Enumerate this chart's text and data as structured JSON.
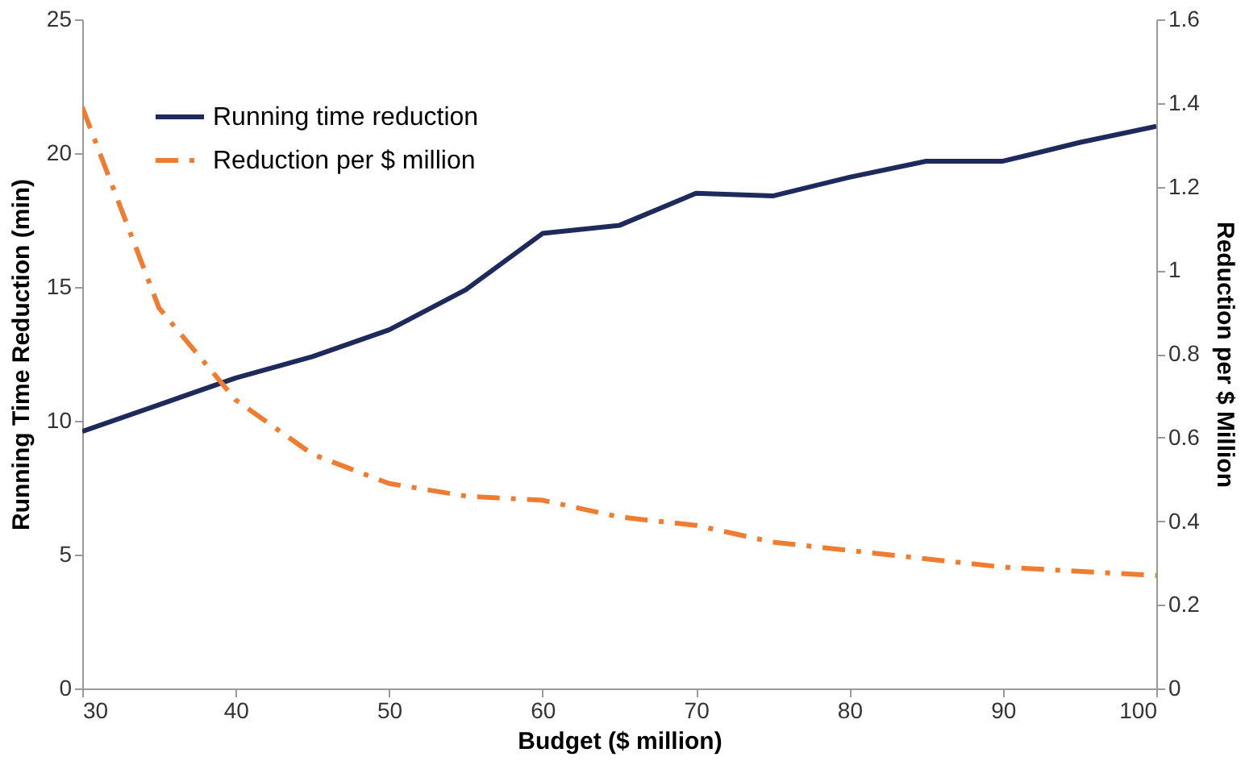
{
  "chart_data": {
    "type": "line",
    "xlabel": "Budget ($ million)",
    "ylabel": "Running Time Reduction (min)",
    "y2label": "Reduction per $ Million",
    "x": [
      30,
      35,
      40,
      45,
      50,
      55,
      60,
      65,
      70,
      75,
      80,
      85,
      90,
      95,
      100
    ],
    "series": [
      {
        "name": "Running time reduction",
        "color": "#1f2a5c",
        "line_style": "solid",
        "values": [
          9.6,
          10.6,
          11.6,
          12.4,
          13.4,
          14.9,
          17.0,
          17.3,
          18.5,
          18.4,
          19.1,
          19.7,
          19.7,
          20.4,
          21.0
        ]
      },
      {
        "name": "Reduction per $ million",
        "color": "#ee7d31",
        "line_style": "dashed",
        "axis": "y2",
        "values": [
          1.39,
          0.91,
          0.69,
          0.56,
          0.49,
          0.46,
          0.45,
          0.41,
          0.39,
          0.35,
          0.33,
          0.31,
          0.29,
          0.28,
          0.27
        ]
      }
    ],
    "xlim": [
      30,
      100
    ],
    "xticks": [
      30,
      40,
      50,
      60,
      70,
      80,
      90,
      100
    ],
    "ylim": [
      0,
      25
    ],
    "yticks": [
      0,
      5,
      10,
      15,
      20,
      25
    ],
    "y2lim": [
      0,
      1.6
    ],
    "y2ticks": [
      0,
      0.2,
      0.4,
      0.6,
      0.8,
      1,
      1.2,
      1.4,
      1.6
    ],
    "grid": false,
    "legend": "top left",
    "marker": "none"
  }
}
